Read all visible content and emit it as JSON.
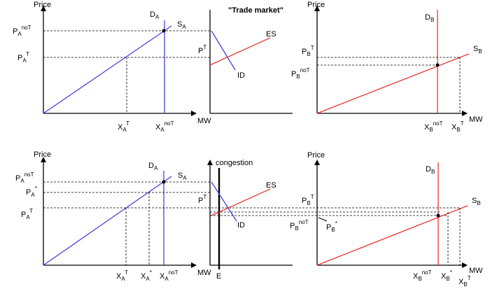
{
  "top": {
    "panelA": {
      "price": "Price",
      "mw": "MW",
      "d_label": {
        "main": "D",
        "sub": "A"
      },
      "s_label": {
        "main": "S",
        "sub": "A"
      },
      "p_notrade": {
        "main": "P",
        "sub": "A",
        "sup": "noT"
      },
      "p_trade": {
        "main": "P",
        "sub": "A",
        "sup": "T"
      },
      "x_trade": {
        "main": "X",
        "sub": "A",
        "sup": "T"
      },
      "x_notrade": {
        "main": "X",
        "sub": "A",
        "sup": "noT"
      }
    },
    "panelMid": {
      "title": "\"Trade market\"",
      "es": "ES",
      "id": "ID",
      "pt": {
        "main": "P",
        "sup": "T"
      }
    },
    "panelB": {
      "price": "Price",
      "mw": "MW",
      "d_label": {
        "main": "D",
        "sub": "B"
      },
      "s_label": {
        "main": "S",
        "sub": "B"
      },
      "p_trade": {
        "main": "P",
        "sub": "B",
        "sup": "T"
      },
      "p_notrade": {
        "main": "P",
        "sub": "B",
        "sup": "noT"
      },
      "x_notrade": {
        "main": "X",
        "sub": "B",
        "sup": "noT"
      },
      "x_trade": {
        "main": "X",
        "sub": "B",
        "sup": "T"
      }
    }
  },
  "bottom": {
    "panelA": {
      "price": "Price",
      "mw": "MW",
      "d_label": {
        "main": "D",
        "sub": "A"
      },
      "s_label": {
        "main": "S",
        "sub": "A"
      },
      "p_notrade": {
        "main": "P",
        "sub": "A",
        "sup": "noT"
      },
      "p_star": {
        "main": "P",
        "sub": "A",
        "sup": "*"
      },
      "p_trade": {
        "main": "P",
        "sub": "A",
        "sup": "T"
      },
      "x_trade": {
        "main": "X",
        "sub": "A",
        "sup": "T"
      },
      "x_star": {
        "main": "X",
        "sub": "A",
        "sup": "*"
      },
      "x_notrade": {
        "main": "X",
        "sub": "A",
        "sup": "noT"
      }
    },
    "panelMid": {
      "congestion": "congestion",
      "es": "ES",
      "id": "ID",
      "pt": {
        "main": "P",
        "sup": "T"
      },
      "e": "E"
    },
    "panelB": {
      "price": "Price",
      "mw": "MW",
      "d_label": {
        "main": "D",
        "sub": "B"
      },
      "s_label": {
        "main": "S",
        "sub": "B"
      },
      "p_trade": {
        "main": "P",
        "sub": "B",
        "sup": "T"
      },
      "p_notrade": {
        "main": "P",
        "sub": "B",
        "sup": "noT"
      },
      "p_star": {
        "main": "P",
        "sub": "B",
        "sup": "*"
      },
      "x_notrade": {
        "main": "X",
        "sub": "B",
        "sup": "noT"
      },
      "x_star": {
        "main": "X",
        "sub": "B",
        "sup": "*"
      },
      "x_trade": {
        "main": "X",
        "sub": "B",
        "sup": "T"
      }
    }
  },
  "colors": {
    "supply_a": "#4444dd",
    "supply_b": "#ee3333",
    "axis": "#000000",
    "guide": "#000000"
  }
}
